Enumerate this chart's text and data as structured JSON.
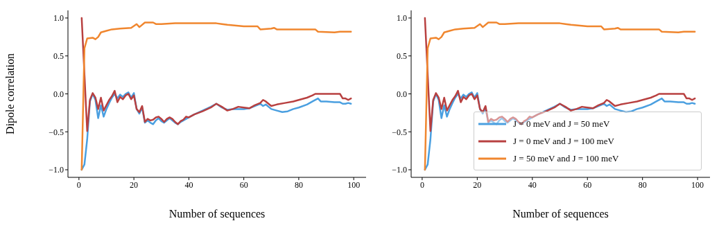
{
  "chart_data": [
    {
      "type": "line",
      "ylabel": "Dipole correlation",
      "xlabel": "Number of sequences",
      "xlim": [
        -4,
        104.5
      ],
      "ylim": [
        -1.1,
        1.1
      ],
      "xticks": [
        0,
        20,
        40,
        60,
        80,
        100
      ],
      "yticks": [
        {
          "value": -1,
          "label": "−1.0"
        },
        {
          "value": -0.5,
          "label": "−0.5"
        },
        {
          "value": 0,
          "label": "0.0"
        },
        {
          "value": 0.5,
          "label": "0.5"
        },
        {
          "value": 1,
          "label": "1.0"
        }
      ],
      "grid": false,
      "legend": false,
      "marker": "none",
      "line_style": "solid",
      "series": [
        {
          "color": "#4a9fe0",
          "x": [
            1,
            2,
            3,
            4,
            5,
            6,
            7,
            8,
            9,
            10,
            11,
            12,
            13,
            14,
            15,
            16,
            17,
            18,
            19,
            20,
            21,
            22,
            23,
            24,
            25,
            26,
            27,
            28,
            29,
            30,
            31,
            32,
            33,
            34,
            35,
            36,
            37,
            38,
            40,
            42,
            45,
            48,
            50,
            52,
            54,
            56,
            58,
            60,
            62,
            64,
            66,
            67,
            68,
            70,
            72,
            74,
            76,
            78,
            80,
            83,
            85,
            87,
            88,
            90,
            93,
            95,
            96,
            97,
            98,
            99
          ],
          "values": [
            -1,
            -0.93,
            -0.6,
            -0.1,
            0,
            -0.08,
            -0.32,
            -0.15,
            -0.3,
            -0.2,
            -0.12,
            -0.05,
            0,
            -0.06,
            -0.01,
            -0.04,
            0,
            0.02,
            -0.05,
            0.01,
            -0.2,
            -0.26,
            -0.18,
            -0.38,
            -0.35,
            -0.38,
            -0.4,
            -0.35,
            -0.32,
            -0.36,
            -0.38,
            -0.35,
            -0.32,
            -0.35,
            -0.38,
            -0.4,
            -0.37,
            -0.35,
            -0.31,
            -0.27,
            -0.22,
            -0.17,
            -0.13,
            -0.18,
            -0.21,
            -0.2,
            -0.2,
            -0.2,
            -0.19,
            -0.16,
            -0.13,
            -0.16,
            -0.14,
            -0.2,
            -0.22,
            -0.24,
            -0.23,
            -0.2,
            -0.18,
            -0.14,
            -0.1,
            -0.06,
            -0.1,
            -0.1,
            -0.11,
            -0.11,
            -0.13,
            -0.13,
            -0.12,
            -0.13
          ]
        },
        {
          "color": "#b84040",
          "x": [
            1,
            3,
            4,
            5,
            6,
            7,
            8,
            9,
            10,
            11,
            12,
            13,
            14,
            15,
            16,
            17,
            18,
            19,
            20,
            21,
            22,
            23,
            24,
            25,
            26,
            27,
            28,
            29,
            30,
            31,
            32,
            33,
            34,
            35,
            36,
            37,
            38,
            39,
            40,
            42,
            45,
            48,
            50,
            52,
            54,
            56,
            58,
            60,
            62,
            64,
            66,
            67,
            68,
            70,
            72,
            75,
            78,
            80,
            83,
            85,
            86,
            88,
            90,
            95,
            96,
            97,
            98,
            99
          ],
          "values": [
            1,
            -0.49,
            -0.08,
            0.01,
            -0.05,
            -0.2,
            -0.05,
            -0.22,
            -0.15,
            -0.08,
            -0.03,
            0.04,
            -0.11,
            -0.04,
            -0.07,
            -0.02,
            0,
            -0.07,
            -0.02,
            -0.2,
            -0.24,
            -0.16,
            -0.37,
            -0.33,
            -0.35,
            -0.34,
            -0.31,
            -0.3,
            -0.33,
            -0.37,
            -0.33,
            -0.31,
            -0.33,
            -0.37,
            -0.4,
            -0.36,
            -0.34,
            -0.3,
            -0.31,
            -0.27,
            -0.23,
            -0.18,
            -0.13,
            -0.17,
            -0.22,
            -0.2,
            -0.17,
            -0.18,
            -0.19,
            -0.15,
            -0.12,
            -0.08,
            -0.1,
            -0.16,
            -0.14,
            -0.12,
            -0.1,
            -0.08,
            -0.05,
            -0.02,
            0,
            0,
            0,
            0,
            -0.06,
            -0.06,
            -0.08,
            -0.06
          ]
        },
        {
          "color": "#f0862e",
          "x": [
            1,
            2,
            3,
            5,
            6,
            7,
            8,
            10,
            12,
            15,
            19,
            21,
            22,
            24,
            27,
            28,
            30,
            35,
            40,
            45,
            50,
            52,
            54,
            60,
            65,
            66,
            70,
            71,
            72,
            86,
            87,
            93,
            95,
            99
          ],
          "values": [
            -1,
            0.6,
            0.73,
            0.74,
            0.72,
            0.75,
            0.81,
            0.83,
            0.85,
            0.86,
            0.87,
            0.92,
            0.88,
            0.94,
            0.94,
            0.92,
            0.92,
            0.93,
            0.93,
            0.93,
            0.93,
            0.92,
            0.91,
            0.89,
            0.89,
            0.85,
            0.86,
            0.87,
            0.85,
            0.85,
            0.82,
            0.81,
            0.82,
            0.82
          ]
        }
      ]
    },
    {
      "type": "line",
      "xlabel": "Number of sequences",
      "xlim": [
        -4,
        104.5
      ],
      "ylim": [
        -1.1,
        1.1
      ],
      "xticks": [
        0,
        20,
        40,
        60,
        80,
        100
      ],
      "yticks": [
        {
          "value": -1,
          "label": "−1.0"
        },
        {
          "value": -0.5,
          "label": "−0.5"
        },
        {
          "value": 0,
          "label": "0.0"
        },
        {
          "value": 0.5,
          "label": "0.5"
        },
        {
          "value": 1,
          "label": "1.0"
        }
      ],
      "grid": false,
      "legend": "bottom right",
      "marker": "none",
      "line_style": "solid",
      "series": [
        {
          "name": "J = 0 meV and J = 50 meV",
          "color": "#4a9fe0",
          "x": [
            1,
            2,
            3,
            4,
            5,
            6,
            7,
            8,
            9,
            10,
            11,
            12,
            13,
            14,
            15,
            16,
            17,
            18,
            19,
            20,
            21,
            22,
            23,
            24,
            25,
            26,
            27,
            28,
            29,
            30,
            31,
            32,
            33,
            34,
            35,
            36,
            37,
            38,
            40,
            42,
            45,
            48,
            50,
            52,
            54,
            56,
            58,
            60,
            62,
            64,
            66,
            67,
            68,
            70,
            72,
            74,
            76,
            78,
            80,
            83,
            85,
            87,
            88,
            90,
            93,
            95,
            96,
            97,
            98,
            99
          ],
          "values": [
            -1,
            -0.93,
            -0.6,
            -0.1,
            0,
            -0.08,
            -0.32,
            -0.15,
            -0.3,
            -0.2,
            -0.12,
            -0.05,
            0,
            -0.06,
            -0.01,
            -0.04,
            0,
            0.02,
            -0.05,
            0.01,
            -0.2,
            -0.26,
            -0.18,
            -0.38,
            -0.35,
            -0.38,
            -0.4,
            -0.35,
            -0.32,
            -0.36,
            -0.38,
            -0.35,
            -0.32,
            -0.35,
            -0.38,
            -0.4,
            -0.37,
            -0.35,
            -0.31,
            -0.27,
            -0.22,
            -0.17,
            -0.13,
            -0.18,
            -0.21,
            -0.2,
            -0.2,
            -0.2,
            -0.19,
            -0.16,
            -0.13,
            -0.16,
            -0.14,
            -0.2,
            -0.22,
            -0.24,
            -0.23,
            -0.2,
            -0.18,
            -0.14,
            -0.1,
            -0.06,
            -0.1,
            -0.1,
            -0.11,
            -0.11,
            -0.13,
            -0.13,
            -0.12,
            -0.13
          ]
        },
        {
          "name": "J = 0 meV and J = 100 meV",
          "color": "#b84040",
          "x": [
            1,
            3,
            4,
            5,
            6,
            7,
            8,
            9,
            10,
            11,
            12,
            13,
            14,
            15,
            16,
            17,
            18,
            19,
            20,
            21,
            22,
            23,
            24,
            25,
            26,
            27,
            28,
            29,
            30,
            31,
            32,
            33,
            34,
            35,
            36,
            37,
            38,
            39,
            40,
            42,
            45,
            48,
            50,
            52,
            54,
            56,
            58,
            60,
            62,
            64,
            66,
            67,
            68,
            70,
            72,
            75,
            78,
            80,
            83,
            85,
            86,
            88,
            90,
            95,
            96,
            97,
            98,
            99
          ],
          "values": [
            1,
            -0.49,
            -0.08,
            0.01,
            -0.05,
            -0.2,
            -0.05,
            -0.22,
            -0.15,
            -0.08,
            -0.03,
            0.04,
            -0.11,
            -0.04,
            -0.07,
            -0.02,
            0,
            -0.07,
            -0.02,
            -0.2,
            -0.24,
            -0.16,
            -0.37,
            -0.33,
            -0.35,
            -0.34,
            -0.31,
            -0.3,
            -0.33,
            -0.37,
            -0.33,
            -0.31,
            -0.33,
            -0.37,
            -0.4,
            -0.36,
            -0.34,
            -0.3,
            -0.31,
            -0.27,
            -0.23,
            -0.18,
            -0.13,
            -0.17,
            -0.22,
            -0.2,
            -0.17,
            -0.18,
            -0.19,
            -0.15,
            -0.12,
            -0.08,
            -0.1,
            -0.16,
            -0.14,
            -0.12,
            -0.1,
            -0.08,
            -0.05,
            -0.02,
            0,
            0,
            0,
            0,
            -0.06,
            -0.06,
            -0.08,
            -0.06
          ]
        },
        {
          "name": "J = 50 meV and J = 100 meV",
          "color": "#f0862e",
          "x": [
            1,
            2,
            3,
            5,
            6,
            7,
            8,
            10,
            12,
            15,
            19,
            21,
            22,
            24,
            27,
            28,
            30,
            35,
            40,
            45,
            50,
            52,
            54,
            60,
            65,
            66,
            70,
            71,
            72,
            86,
            87,
            93,
            95,
            99
          ],
          "values": [
            -1,
            0.6,
            0.73,
            0.74,
            0.72,
            0.75,
            0.81,
            0.83,
            0.85,
            0.86,
            0.87,
            0.92,
            0.88,
            0.94,
            0.94,
            0.92,
            0.92,
            0.93,
            0.93,
            0.93,
            0.93,
            0.92,
            0.91,
            0.89,
            0.89,
            0.85,
            0.86,
            0.87,
            0.85,
            0.85,
            0.82,
            0.81,
            0.82,
            0.82
          ]
        }
      ]
    }
  ]
}
